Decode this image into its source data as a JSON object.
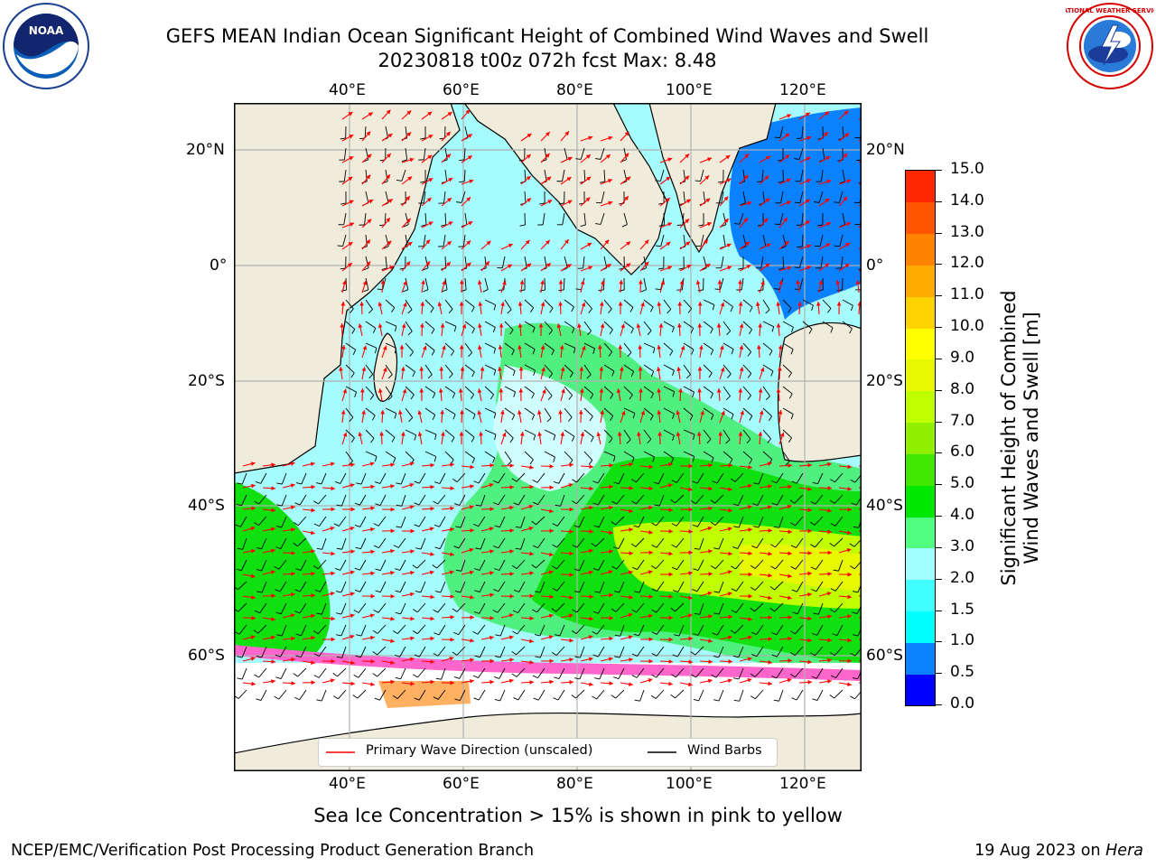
{
  "header": {
    "title_line1": "GEFS MEAN Indian Ocean Significant Height of Combined Wind Waves and Swell",
    "title_line2": "20230818 t00z 072h fcst   Max: 8.48"
  },
  "logos": {
    "left": "noaa-logo",
    "right": "national-weather-service-logo",
    "noaa_text": "NOAA",
    "nws_text": "NATIONAL WEATHER SERVICE"
  },
  "map": {
    "lon_labels": [
      "40°E",
      "60°E",
      "80°E",
      "100°E",
      "120°E"
    ],
    "lat_labels_left": [
      "20°N",
      "0°",
      "20°S",
      "40°S",
      "60°S"
    ],
    "lat_labels_right": [
      "20°N",
      "0°",
      "20°S",
      "40°S",
      "60°S"
    ],
    "colors": {
      "land": "#efecdc",
      "ice_white": "#ffffff",
      "coast": "#000000",
      "grid": "#b0b0b0"
    }
  },
  "legend": {
    "wave_label": "Primary Wave Direction (unscaled)",
    "wave_color": "#ff0000",
    "wind_label": "Wind Barbs",
    "wind_color": "#000000"
  },
  "colorbar": {
    "label_line1": "Significant Height of Combined",
    "label_line2": "Wind Waves and Swell [m]",
    "ticks": [
      "15.0",
      "14.0",
      "13.0",
      "12.0",
      "11.0",
      "10.0",
      "9.0",
      "8.0",
      "7.0",
      "6.0",
      "5.0",
      "4.0",
      "3.0",
      "2.0",
      "1.5",
      "1.0",
      "0.5",
      "0.0"
    ],
    "colors_bottom_to_top": [
      "#0000ff",
      "#0a82ff",
      "#00ffff",
      "#40ffff",
      "#a0ffff",
      "#50ff80",
      "#00e800",
      "#40e800",
      "#90f000",
      "#c0ff00",
      "#e8f800",
      "#ffff00",
      "#ffd200",
      "#ffaa00",
      "#ff8200",
      "#ff5500",
      "#ff2800"
    ]
  },
  "footer": {
    "caption": "Sea Ice Concentration > 15% is shown in pink to yellow",
    "left": "NCEP/EMC/Verification Post Processing Product Generation Branch",
    "right_date": "19 Aug 2023 on ",
    "right_host": "Hera"
  }
}
